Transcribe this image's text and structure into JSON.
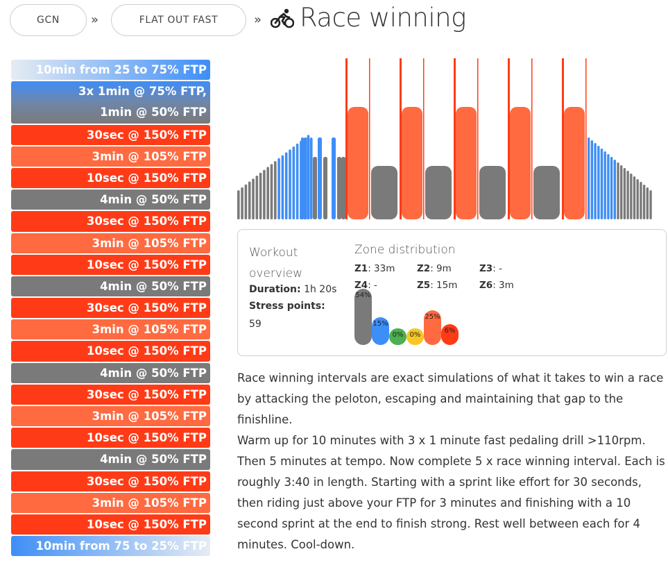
{
  "breadcrumb": {
    "items": [
      "GCN",
      "FLAT OUT FAST"
    ],
    "separator": "»"
  },
  "title": "Race winning",
  "title_icon": "cyclist-icon",
  "colors": {
    "z1_gray": "#7a7a7a",
    "z2_blue": "#3e8ef7",
    "z3_green": "#4caf50",
    "z4_yellow": "#f9c623",
    "z5_orange": "#ff6a40",
    "z6_red": "#ff3b17"
  },
  "segments": [
    {
      "label": "10min from 25 to 75% FTP",
      "kind": "ramp-up"
    },
    {
      "label_lines": [
        "3x 1min @ 75% FTP,",
        "1min @ 50% FTP"
      ],
      "kind": "blue-gray"
    },
    {
      "label": "30sec @ 150% FTP",
      "kind": "z6"
    },
    {
      "label": "3min @ 105% FTP",
      "kind": "z5"
    },
    {
      "label": "10sec @ 150% FTP",
      "kind": "z6"
    },
    {
      "label": "4min @ 50% FTP",
      "kind": "z1"
    },
    {
      "label": "30sec @ 150% FTP",
      "kind": "z6"
    },
    {
      "label": "3min @ 105% FTP",
      "kind": "z5"
    },
    {
      "label": "10sec @ 150% FTP",
      "kind": "z6"
    },
    {
      "label": "4min @ 50% FTP",
      "kind": "z1"
    },
    {
      "label": "30sec @ 150% FTP",
      "kind": "z6"
    },
    {
      "label": "3min @ 105% FTP",
      "kind": "z5"
    },
    {
      "label": "10sec @ 150% FTP",
      "kind": "z6"
    },
    {
      "label": "4min @ 50% FTP",
      "kind": "z1"
    },
    {
      "label": "30sec @ 150% FTP",
      "kind": "z6"
    },
    {
      "label": "3min @ 105% FTP",
      "kind": "z5"
    },
    {
      "label": "10sec @ 150% FTP",
      "kind": "z6"
    },
    {
      "label": "4min @ 50% FTP",
      "kind": "z1"
    },
    {
      "label": "30sec @ 150% FTP",
      "kind": "z6"
    },
    {
      "label": "3min @ 105% FTP",
      "kind": "z5"
    },
    {
      "label": "10sec @ 150% FTP",
      "kind": "z6"
    },
    {
      "label": "10min from 75 to 25% FTP",
      "kind": "ramp-down"
    }
  ],
  "overview": {
    "title": "Workout overview",
    "duration_label": "Duration:",
    "duration_value": "1h 20s",
    "stress_label": "Stress points:",
    "stress_value": "59"
  },
  "zone_distribution": {
    "title": "Zone distribution",
    "zones": [
      {
        "name": "Z1",
        "time": "33m"
      },
      {
        "name": "Z2",
        "time": "9m"
      },
      {
        "name": "Z3",
        "time": "-"
      },
      {
        "name": "Z4",
        "time": "-"
      },
      {
        "name": "Z5",
        "time": "15m"
      },
      {
        "name": "Z6",
        "time": "3m"
      }
    ],
    "bars": [
      {
        "pct_label": "54%",
        "value": 54,
        "color": "#7a7a7a"
      },
      {
        "pct_label": "15%",
        "value": 15,
        "color": "#3e8ef7"
      },
      {
        "pct_label": "0%",
        "value": 0,
        "color": "#4caf50"
      },
      {
        "pct_label": "0%",
        "value": 0,
        "color": "#f9c623"
      },
      {
        "pct_label": "25%",
        "value": 25,
        "color": "#ff6a40"
      },
      {
        "pct_label": "6%",
        "value": 6,
        "color": "#ff3b17"
      }
    ]
  },
  "description": {
    "p1": "Race winning intervals are exact simulations of what it takes to win a race by attacking the peloton, escaping and maintaining that gap to the finishline.",
    "p2": "Warm up for 10 minutes with 3 x 1 minute fast pedaling drill >110rpm. Then 5 minutes at tempo. Now complete 5 x race winning interval. Each is roughly 3:40 in length. Starting with a sprint like effort for 30 seconds, then riding just above your FTP for 3 minutes and finishing with a 10 second sprint at the end to finish strong. Rest well between each for 4 minutes. Cool-down."
  }
}
